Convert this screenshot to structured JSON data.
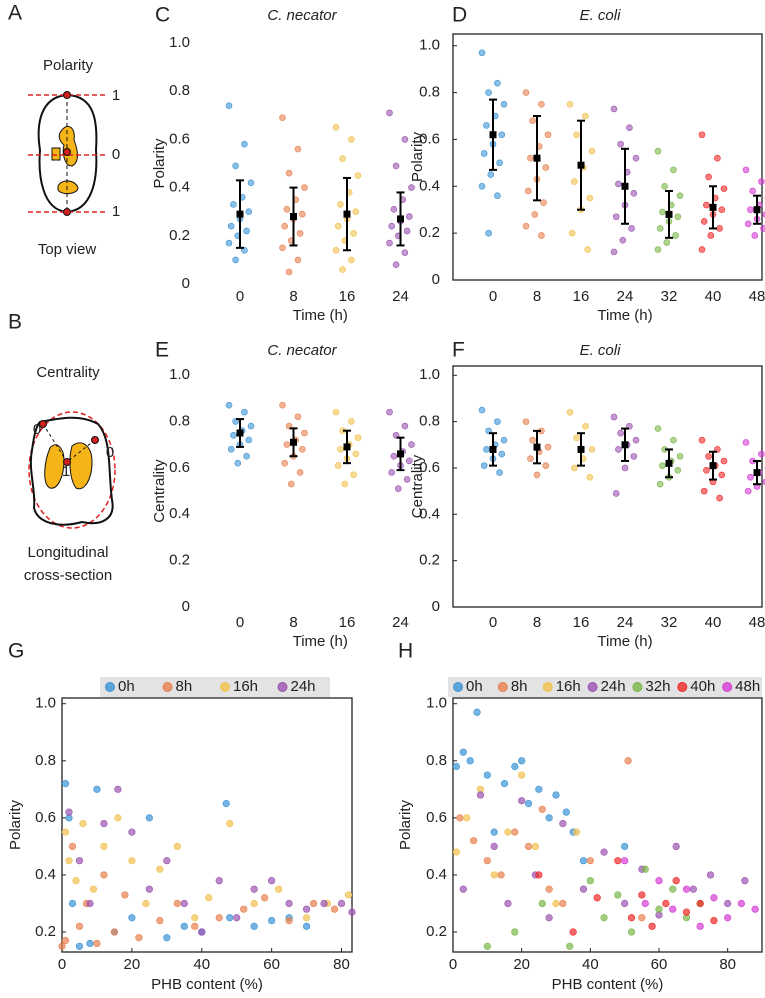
{
  "diagrams": {
    "A": {
      "panel": "A",
      "title": "Polarity",
      "labels": [
        "1",
        "0",
        "1"
      ],
      "caption": "Top view"
    },
    "B": {
      "panel": "B",
      "title": "Centrality",
      "labels": [
        "0",
        "0",
        "1"
      ],
      "caption": [
        "Longitudinal",
        "cross-section"
      ]
    }
  },
  "chart_data": [
    {
      "type": "strip",
      "panel": "C",
      "title": "C. necator",
      "xlabel": "Time (h)",
      "ylabel": "Polarity",
      "categories": [
        "0",
        "8",
        "16",
        "24"
      ],
      "colors": [
        "#3b94d6",
        "#e8804e",
        "#f2c14e",
        "#9b52b0"
      ],
      "points": [
        [
          0.74,
          0.58,
          0.49,
          0.42,
          0.36,
          0.33,
          0.3,
          0.27,
          0.24,
          0.22,
          0.2,
          0.17,
          0.14,
          0.1
        ],
        [
          0.69,
          0.56,
          0.46,
          0.4,
          0.35,
          0.31,
          0.29,
          0.27,
          0.24,
          0.21,
          0.18,
          0.15,
          0.1,
          0.05
        ],
        [
          0.65,
          0.6,
          0.52,
          0.45,
          0.38,
          0.33,
          0.3,
          0.27,
          0.24,
          0.21,
          0.18,
          0.14,
          0.1,
          0.06
        ],
        [
          0.71,
          0.6,
          0.49,
          0.4,
          0.35,
          0.31,
          0.28,
          0.26,
          0.24,
          0.22,
          0.2,
          0.17,
          0.13,
          0.08
        ]
      ],
      "means": [
        0.29,
        0.28,
        0.29,
        0.27
      ],
      "sds": [
        0.14,
        0.12,
        0.15,
        0.11
      ],
      "ylim": [
        0,
        1
      ],
      "yticks": [
        0,
        0.2,
        0.4,
        0.6,
        0.8,
        {
          "value": 1,
          "label": "1.0"
        }
      ],
      "frame": false
    },
    {
      "type": "strip",
      "panel": "D",
      "title": "E. coli",
      "xlabel": "Time (h)",
      "ylabel": "Polarity",
      "categories": [
        "0",
        "8",
        "16",
        "24",
        "32",
        "40",
        "48"
      ],
      "colors": [
        "#3b94d6",
        "#e8804e",
        "#f2c14e",
        "#9b52b0",
        "#7ab648",
        "#f02828",
        "#d43cd4"
      ],
      "points": [
        [
          0.97,
          0.84,
          0.8,
          0.75,
          0.7,
          0.66,
          0.62,
          0.58,
          0.54,
          0.5,
          0.45,
          0.4,
          0.36,
          0.2
        ],
        [
          0.8,
          0.75,
          0.68,
          0.62,
          0.57,
          0.52,
          0.48,
          0.43,
          0.38,
          0.33,
          0.28,
          0.23,
          0.19
        ],
        [
          0.75,
          0.7,
          0.62,
          0.55,
          0.48,
          0.42,
          0.35,
          0.3,
          0.2,
          0.13
        ],
        [
          0.73,
          0.65,
          0.58,
          0.52,
          0.46,
          0.41,
          0.37,
          0.32,
          0.27,
          0.22,
          0.17,
          0.12
        ],
        [
          0.55,
          0.47,
          0.4,
          0.36,
          0.32,
          0.29,
          0.27,
          0.25,
          0.22,
          0.19,
          0.16,
          0.13
        ],
        [
          0.62,
          0.52,
          0.44,
          0.39,
          0.35,
          0.32,
          0.3,
          0.28,
          0.25,
          0.22,
          0.19,
          0.13
        ],
        [
          0.47,
          0.42,
          0.38,
          0.35,
          0.32,
          0.3,
          0.28,
          0.26,
          0.24,
          0.22,
          0.19
        ]
      ],
      "means": [
        0.62,
        0.52,
        0.49,
        0.4,
        0.28,
        0.31,
        0.3
      ],
      "sds": [
        0.15,
        0.18,
        0.19,
        0.16,
        0.1,
        0.09,
        0.06
      ],
      "ylim": [
        0,
        1.05
      ],
      "yticks": [
        0,
        0.2,
        0.4,
        0.6,
        0.8,
        {
          "value": 1,
          "label": "1.0"
        }
      ],
      "frame": true
    },
    {
      "type": "strip",
      "panel": "E",
      "title": "C. necator",
      "xlabel": "Time (h)",
      "ylabel": "Centrality",
      "categories": [
        "0",
        "8",
        "16",
        "24"
      ],
      "colors": [
        "#3b94d6",
        "#e8804e",
        "#f2c14e",
        "#9b52b0"
      ],
      "points": [
        [
          0.87,
          0.84,
          0.8,
          0.78,
          0.76,
          0.74,
          0.72,
          0.7,
          0.68,
          0.65,
          0.62
        ],
        [
          0.87,
          0.82,
          0.78,
          0.75,
          0.72,
          0.7,
          0.68,
          0.65,
          0.62,
          0.58,
          0.53
        ],
        [
          0.84,
          0.8,
          0.76,
          0.73,
          0.7,
          0.68,
          0.66,
          0.64,
          0.61,
          0.57,
          0.53
        ],
        [
          0.84,
          0.78,
          0.74,
          0.7,
          0.67,
          0.65,
          0.63,
          0.61,
          0.58,
          0.55,
          0.51
        ]
      ],
      "means": [
        0.75,
        0.71,
        0.69,
        0.66
      ],
      "sds": [
        0.06,
        0.06,
        0.07,
        0.07
      ],
      "ylim": [
        0,
        1
      ],
      "yticks": [
        0,
        0.2,
        0.4,
        0.6,
        0.8,
        {
          "value": 1,
          "label": "1.0"
        }
      ],
      "frame": false
    },
    {
      "type": "strip",
      "panel": "F",
      "title": "E. coli",
      "xlabel": "Time (h)",
      "ylabel": "Centrality",
      "categories": [
        "0",
        "8",
        "16",
        "24",
        "32",
        "40",
        "48"
      ],
      "colors": [
        "#3b94d6",
        "#e8804e",
        "#f2c14e",
        "#9b52b0",
        "#7ab648",
        "#f02828",
        "#d43cd4"
      ],
      "points": [
        [
          0.85,
          0.8,
          0.76,
          0.72,
          0.7,
          0.68,
          0.66,
          0.64,
          0.61,
          0.58
        ],
        [
          0.8,
          0.76,
          0.72,
          0.69,
          0.67,
          0.64,
          0.61,
          0.57
        ],
        [
          0.84,
          0.78,
          0.73,
          0.68,
          0.64,
          0.6,
          0.56
        ],
        [
          0.82,
          0.78,
          0.75,
          0.72,
          0.7,
          0.68,
          0.65,
          0.6,
          0.49
        ],
        [
          0.77,
          0.72,
          0.68,
          0.65,
          0.63,
          0.61,
          0.59,
          0.56,
          0.53
        ],
        [
          0.72,
          0.68,
          0.65,
          0.63,
          0.61,
          0.59,
          0.57,
          0.54,
          0.5,
          0.47
        ],
        [
          0.71,
          0.66,
          0.63,
          0.6,
          0.58,
          0.56,
          0.54,
          0.52,
          0.5
        ]
      ],
      "means": [
        0.68,
        0.69,
        0.68,
        0.7,
        0.62,
        0.61,
        0.58
      ],
      "sds": [
        0.07,
        0.07,
        0.07,
        0.07,
        0.06,
        0.06,
        0.05
      ],
      "ylim": [
        0,
        1.04
      ],
      "yticks": [
        0,
        0.2,
        0.4,
        0.6,
        0.8,
        {
          "value": 1,
          "label": "1.0"
        }
      ],
      "frame": true
    },
    {
      "type": "scatter",
      "panel": "G",
      "xlabel": "PHB content (%)",
      "ylabel": "Polarity",
      "xlim": [
        0,
        83
      ],
      "ylim": [
        0.13,
        1.02
      ],
      "xticks": [
        0,
        20,
        40,
        60,
        80
      ],
      "yticks": [
        0.2,
        0.4,
        0.6,
        0.8,
        {
          "value": 1,
          "label": "1.0"
        }
      ],
      "legend": "top",
      "series": [
        {
          "name": "0h",
          "color": "#3b94d6",
          "x": [
            1,
            2,
            3,
            5,
            8,
            10,
            15,
            20,
            25,
            30,
            35,
            40,
            47,
            48,
            55,
            60,
            65,
            70
          ],
          "values": [
            0.72,
            0.6,
            0.3,
            0.15,
            0.16,
            0.7,
            0.2,
            0.25,
            0.6,
            0.18,
            0.22,
            0.2,
            0.65,
            0.25,
            0.22,
            0.24,
            0.25,
            0.22
          ]
        },
        {
          "name": "8h",
          "color": "#e8804e",
          "x": [
            0,
            1,
            3,
            5,
            7,
            10,
            12,
            15,
            18,
            22,
            28,
            33,
            38,
            45,
            52,
            58,
            65,
            72,
            78
          ],
          "values": [
            0.15,
            0.17,
            0.5,
            0.22,
            0.3,
            0.16,
            0.4,
            0.2,
            0.33,
            0.18,
            0.24,
            0.3,
            0.22,
            0.25,
            0.28,
            0.32,
            0.24,
            0.3,
            0.28
          ]
        },
        {
          "name": "16h",
          "color": "#f2c14e",
          "x": [
            1,
            2,
            4,
            6,
            9,
            12,
            16,
            20,
            24,
            28,
            33,
            38,
            42,
            48,
            55,
            62,
            70,
            76,
            82
          ],
          "values": [
            0.55,
            0.45,
            0.38,
            0.58,
            0.35,
            0.5,
            0.6,
            0.45,
            0.3,
            0.42,
            0.5,
            0.25,
            0.32,
            0.58,
            0.3,
            0.35,
            0.25,
            0.3,
            0.33
          ]
        },
        {
          "name": "24h",
          "color": "#9b52b0",
          "x": [
            2,
            5,
            8,
            12,
            16,
            20,
            25,
            30,
            35,
            40,
            45,
            50,
            55,
            60,
            65,
            70,
            75,
            80,
            83
          ],
          "values": [
            0.62,
            0.45,
            0.3,
            0.58,
            0.7,
            0.55,
            0.35,
            0.45,
            0.3,
            0.2,
            0.38,
            0.25,
            0.35,
            0.38,
            0.3,
            0.28,
            0.3,
            0.3,
            0.27
          ]
        }
      ]
    },
    {
      "type": "scatter",
      "panel": "H",
      "xlabel": "PHB content (%)",
      "ylabel": "Polarity",
      "xlim": [
        0,
        90
      ],
      "ylim": [
        0.13,
        1.02
      ],
      "xticks": [
        0,
        20,
        40,
        60,
        80
      ],
      "yticks": [
        0.2,
        0.4,
        0.6,
        0.8,
        {
          "value": 1,
          "label": "1.0"
        }
      ],
      "legend": "top",
      "series": [
        {
          "name": "0h",
          "color": "#3b94d6",
          "x": [
            1,
            3,
            5,
            7,
            10,
            12,
            15,
            18,
            20,
            22,
            25,
            28,
            30,
            33,
            35,
            38,
            50
          ],
          "values": [
            0.78,
            0.83,
            0.8,
            0.97,
            0.75,
            0.55,
            0.72,
            0.78,
            0.8,
            0.65,
            0.7,
            0.6,
            0.68,
            0.62,
            0.55,
            0.45,
            0.5
          ]
        },
        {
          "name": "8h",
          "color": "#e8804e",
          "x": [
            2,
            6,
            10,
            14,
            18,
            22,
            26,
            28,
            32,
            40,
            51,
            55
          ],
          "values": [
            0.6,
            0.52,
            0.45,
            0.4,
            0.55,
            0.5,
            0.63,
            0.35,
            0.3,
            0.45,
            0.8,
            0.25
          ]
        },
        {
          "name": "16h",
          "color": "#f2c14e",
          "x": [
            1,
            4,
            8,
            12,
            16,
            20,
            24,
            30,
            36
          ],
          "values": [
            0.48,
            0.6,
            0.7,
            0.4,
            0.55,
            0.75,
            0.5,
            0.3,
            0.55
          ]
        },
        {
          "name": "24h",
          "color": "#9b52b0",
          "x": [
            3,
            8,
            12,
            16,
            20,
            24,
            28,
            32,
            38,
            44,
            50,
            55,
            60,
            65,
            70,
            75,
            80,
            85
          ],
          "values": [
            0.35,
            0.68,
            0.5,
            0.3,
            0.66,
            0.4,
            0.25,
            0.58,
            0.35,
            0.48,
            0.3,
            0.42,
            0.26,
            0.5,
            0.35,
            0.4,
            0.3,
            0.38
          ]
        },
        {
          "name": "32h",
          "color": "#7ab648",
          "x": [
            10,
            18,
            26,
            34,
            40,
            44,
            48,
            52,
            56,
            60,
            64,
            68,
            72
          ],
          "values": [
            0.15,
            0.2,
            0.3,
            0.15,
            0.38,
            0.25,
            0.33,
            0.2,
            0.42,
            0.28,
            0.35,
            0.25,
            0.3
          ]
        },
        {
          "name": "40h",
          "color": "#f02828",
          "x": [
            25,
            35,
            42,
            48,
            52,
            55,
            58,
            62,
            65,
            68,
            72,
            76
          ],
          "values": [
            0.4,
            0.2,
            0.32,
            0.45,
            0.25,
            0.33,
            0.22,
            0.3,
            0.38,
            0.27,
            0.3,
            0.24
          ]
        },
        {
          "name": "48h",
          "color": "#d43cd4",
          "x": [
            50,
            56,
            60,
            64,
            68,
            72,
            76,
            80,
            84,
            88
          ],
          "values": [
            0.45,
            0.3,
            0.38,
            0.28,
            0.35,
            0.22,
            0.32,
            0.25,
            0.3,
            0.28
          ]
        }
      ]
    }
  ]
}
